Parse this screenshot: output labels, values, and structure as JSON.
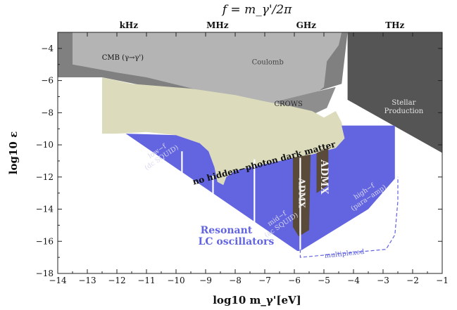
{
  "chart_data": {
    "type": "area",
    "title": "f = m_γ'/2π",
    "xlabel": "log10 m_γ'[eV]",
    "ylabel": "log10 ε",
    "xlim": [
      -14,
      -1
    ],
    "ylim": [
      -18,
      -3
    ],
    "x_ticks": [
      -14,
      -13,
      -12,
      -11,
      -10,
      -9,
      -8,
      -7,
      -6,
      -5,
      -4,
      -3,
      -2,
      -1
    ],
    "y_ticks": [
      -16,
      -14,
      -12,
      -10,
      -8,
      -6,
      -4,
      -18
    ],
    "x_tick_labels": [
      "−14",
      "−13",
      "−12",
      "−11",
      "−10",
      "−9",
      "−8",
      "−7",
      "−6",
      "−5",
      "−4",
      "−3",
      "−2",
      "−1"
    ],
    "y_tick_labels": [
      "−16",
      "−14",
      "−12",
      "−10",
      "−8",
      "−6",
      "−4",
      "−18"
    ],
    "top_axis": {
      "labels": [
        "kHz",
        "MHz",
        "GHz",
        "THz"
      ],
      "positions": [
        -11.6,
        -8.6,
        -5.6,
        -2.6
      ]
    },
    "colors": {
      "stellar": "#555555",
      "cmb": "#808080",
      "coulomb": "#b4b4b4",
      "crows": "#8e8e8e",
      "no_hp_dm": "#dcdcbd",
      "resonant": "#6264e0",
      "admx": "#5a4a3a",
      "text_light": "#d8d8f0"
    },
    "regions": [
      {
        "name": "Stellar Production",
        "label_lines": [
          "Stellar",
          "Production"
        ],
        "label_at": [
          -2.3,
          -7.5
        ],
        "polygon": [
          [
            -4.2,
            -3
          ],
          [
            -1,
            -3
          ],
          [
            -1,
            -10.5
          ],
          [
            -4.2,
            -7.2
          ]
        ]
      },
      {
        "name": "CMB (γ→γ')",
        "label_lines": [
          "CMB (γ→γ')"
        ],
        "label_at": [
          -11.8,
          -4.7
        ],
        "polygon": [
          [
            -14,
            -3
          ],
          [
            -4.2,
            -3
          ],
          [
            -4.4,
            -6.2
          ],
          [
            -6.5,
            -7.4
          ],
          [
            -9.5,
            -6.9
          ],
          [
            -12.5,
            -5.8
          ],
          [
            -14,
            -5.8
          ]
        ]
      },
      {
        "name": "Coulomb",
        "label_lines": [
          "Coulomb"
        ],
        "label_at": [
          -6.9,
          -5.0
        ],
        "polygon": [
          [
            -11.8,
            -3
          ],
          [
            -4.4,
            -3
          ],
          [
            -4.5,
            -3.8
          ],
          [
            -4.9,
            -4.8
          ],
          [
            -5.0,
            -6.4
          ],
          [
            -5.6,
            -7.3
          ],
          [
            -6.3,
            -7.6
          ],
          [
            -7.5,
            -7.4
          ],
          [
            -9.0,
            -6.7
          ],
          [
            -11.0,
            -5.8
          ],
          [
            -12.0,
            -5.5
          ],
          [
            -13.5,
            -5.0
          ],
          [
            -13.5,
            -3
          ]
        ]
      },
      {
        "name": "CROWS",
        "label_lines": [
          "CROWS"
        ],
        "label_at": [
          -6.2,
          -7.6
        ],
        "polygon": [
          [
            -6.6,
            -7.3
          ],
          [
            -4.6,
            -6.4
          ],
          [
            -4.9,
            -7.7
          ],
          [
            -5.6,
            -8.3
          ],
          [
            -6.4,
            -7.9
          ]
        ]
      },
      {
        "name": "no hidden−photon dark matter",
        "label_lines": [
          "no hidden−photon dark matter"
        ],
        "label_at": [
          -7.0,
          -11.3
        ],
        "label_rotate": -15,
        "polygon": [
          [
            -12.5,
            -5.8
          ],
          [
            -12.0,
            -6.0
          ],
          [
            -11.5,
            -6.2
          ],
          [
            -9.5,
            -6.5
          ],
          [
            -8.0,
            -6.9
          ],
          [
            -7.0,
            -7.3
          ],
          [
            -6.1,
            -7.6
          ],
          [
            -5.4,
            -7.9
          ],
          [
            -5.0,
            -8.3
          ],
          [
            -4.6,
            -7.9
          ],
          [
            -4.4,
            -8.6
          ],
          [
            -4.3,
            -9.6
          ],
          [
            -4.6,
            -10.2
          ],
          [
            -5.4,
            -10.6
          ],
          [
            -6.0,
            -10.8
          ],
          [
            -8.0,
            -11.6
          ],
          [
            -8.3,
            -12.0
          ],
          [
            -8.4,
            -12.5
          ],
          [
            -8.6,
            -12.3
          ],
          [
            -8.7,
            -11.4
          ],
          [
            -8.9,
            -10.4
          ],
          [
            -9.2,
            -9.9
          ],
          [
            -10.0,
            -9.4
          ],
          [
            -11.0,
            -9.2
          ],
          [
            -12.0,
            -9.3
          ],
          [
            -12.5,
            -9.3
          ]
        ]
      },
      {
        "name": "Resonant LC oscillators",
        "label_lines": [
          "Resonant",
          "LC oscillators"
        ],
        "label_at": [
          -8.3,
          -15.5
        ],
        "polygon": [
          [
            -11.7,
            -9.3
          ],
          [
            -10.0,
            -9.4
          ],
          [
            -9.2,
            -9.9
          ],
          [
            -8.9,
            -10.4
          ],
          [
            -8.7,
            -11.4
          ],
          [
            -8.6,
            -12.3
          ],
          [
            -8.4,
            -12.5
          ],
          [
            -8.3,
            -12.0
          ],
          [
            -8.0,
            -11.6
          ],
          [
            -6.0,
            -10.8
          ],
          [
            -5.4,
            -10.6
          ],
          [
            -4.6,
            -10.2
          ],
          [
            -4.3,
            -9.6
          ],
          [
            -4.4,
            -8.8
          ],
          [
            -2.6,
            -8.8
          ],
          [
            -2.6,
            -12.1
          ],
          [
            -3.5,
            -14.0
          ],
          [
            -5.8,
            -16.6
          ],
          [
            -5.9,
            -16.6
          ],
          [
            -11.7,
            -9.3
          ]
        ]
      },
      {
        "name": "ADMX",
        "label_lines": [
          "ADMX"
        ],
        "label_at": [
          -5.85,
          -13.0
        ],
        "label_rotate": 90,
        "polygon": [
          [
            -6.05,
            -10.8
          ],
          [
            -5.45,
            -10.6
          ],
          [
            -5.5,
            -15.3
          ],
          [
            -5.85,
            -15.7
          ],
          [
            -6.05,
            -15.1
          ]
        ]
      },
      {
        "name": "ADMX",
        "label_lines": [
          "ADMX"
        ],
        "label_at": [
          -5.1,
          -12.0
        ],
        "label_rotate": 90,
        "polygon": [
          [
            -5.25,
            -10.5
          ],
          [
            -4.85,
            -10.2
          ],
          [
            -4.85,
            -12.5
          ],
          [
            -5.25,
            -13.0
          ]
        ]
      }
    ],
    "dividers": [
      {
        "x": -9.8,
        "y_top": -10.4,
        "y_bottom": -12.4
      },
      {
        "x": -8.75,
        "y_top": -11.9,
        "y_bottom": -13.4
      },
      {
        "x": -7.35,
        "y_top": -10.9,
        "y_bottom": -15.0
      },
      {
        "x": -5.8,
        "y_top": -10.8,
        "y_bottom": -16.7
      },
      {
        "x": -12.6,
        "y_top": -5.8,
        "y_bottom": -8.9
      }
    ],
    "annotations": [
      {
        "lines": [
          "low−f",
          "(dc SQUID)"
        ],
        "at": [
          -10.6,
          -10.5
        ],
        "rotate": -34,
        "color": "light"
      },
      {
        "lines": [
          "mid−f",
          "(ac SQUID)"
        ],
        "at": [
          -6.55,
          -14.7
        ],
        "rotate": -34,
        "color": "light"
      },
      {
        "lines": [
          "high−f",
          "(para−amp)"
        ],
        "at": [
          -3.6,
          -13.0
        ],
        "rotate": -34,
        "color": "light"
      },
      {
        "lines": [
          "multiplexed"
        ],
        "at": [
          -4.3,
          -16.9
        ],
        "rotate": -6,
        "color": "resonant"
      }
    ],
    "multiplexed_outline": [
      [
        -5.8,
        -16.5
      ],
      [
        -5.8,
        -17.0
      ],
      [
        -2.9,
        -16.5
      ],
      [
        -2.6,
        -15.6
      ],
      [
        -2.5,
        -13.5
      ],
      [
        -2.5,
        -12.0
      ]
    ]
  }
}
